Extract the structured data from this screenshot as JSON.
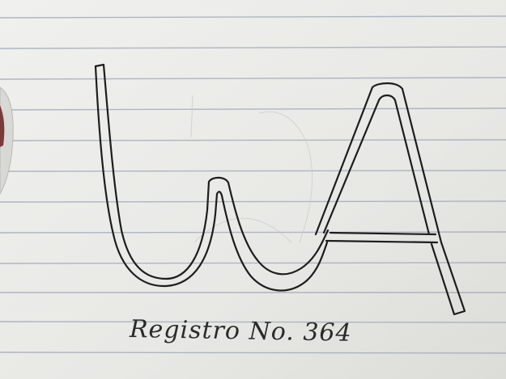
{
  "drawing": {
    "monogram_letters": "WA",
    "caption": "Registro No. 364"
  },
  "colors": {
    "paper": "#ececea",
    "rule_line": "#9aa3b5",
    "ink": "#1c1c1c"
  }
}
